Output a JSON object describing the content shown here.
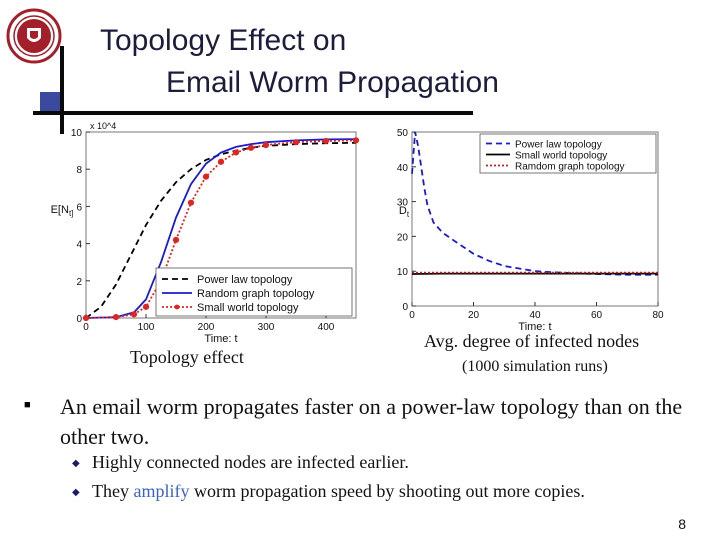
{
  "slide": {
    "title_line1": "Topology Effect on",
    "title_line2": "Email Worm Propagation",
    "caption_left": "Topology effect",
    "caption_right": "Avg. degree of infected nodes",
    "caption_right_sub": "(1000 simulation runs)",
    "bullet_main": "An email worm propagates faster on a power-law topology than on the other two.",
    "sub1": "Highly connected nodes are infected earlier.",
    "sub2_pre": "They ",
    "sub2_highlight": "amplify",
    "sub2_post": " worm propagation speed by shooting out more copies.",
    "page_number": "8",
    "colors": {
      "title": "#1c1c3c",
      "accent": "#3b62c6",
      "logo": "#a3202a"
    }
  },
  "chart_data": [
    {
      "type": "line",
      "xlabel": "Time: t",
      "ylabel": "E[N_t]",
      "y_multiplier": "x 10^4",
      "xlim": [
        0,
        450
      ],
      "ylim": [
        0,
        10
      ],
      "xticks": [
        0,
        100,
        200,
        300,
        400
      ],
      "yticks": [
        0,
        2,
        4,
        6,
        8,
        10
      ],
      "legend_position": "bottom-right",
      "series": [
        {
          "name": "Power law topology",
          "color": "#000000",
          "style": "dashed",
          "x": [
            0,
            25,
            50,
            75,
            100,
            125,
            150,
            175,
            200,
            225,
            250,
            275,
            300,
            350,
            400,
            450
          ],
          "y": [
            0,
            0.6,
            1.8,
            3.4,
            5.0,
            6.3,
            7.3,
            8.0,
            8.5,
            8.8,
            9.0,
            9.15,
            9.25,
            9.35,
            9.4,
            9.42
          ]
        },
        {
          "name": "Random graph topology",
          "color": "#1a1ad0",
          "style": "solid",
          "x": [
            0,
            50,
            80,
            100,
            125,
            150,
            175,
            200,
            225,
            250,
            275,
            300,
            350,
            400,
            450
          ],
          "y": [
            0,
            0.05,
            0.3,
            1.0,
            3.0,
            5.4,
            7.2,
            8.3,
            8.9,
            9.2,
            9.35,
            9.45,
            9.55,
            9.6,
            9.62
          ]
        },
        {
          "name": "Small world topology",
          "color": "#e0241e",
          "style": "dotted-marker",
          "x": [
            0,
            50,
            80,
            100,
            125,
            150,
            175,
            200,
            225,
            250,
            275,
            300,
            350,
            400,
            450
          ],
          "y": [
            0,
            0.05,
            0.2,
            0.6,
            2.0,
            4.2,
            6.2,
            7.6,
            8.4,
            8.9,
            9.15,
            9.3,
            9.45,
            9.52,
            9.55
          ]
        }
      ]
    },
    {
      "type": "line",
      "xlabel": "Time: t",
      "ylabel": "D_t",
      "xlim": [
        0,
        80
      ],
      "ylim": [
        0,
        50
      ],
      "xticks": [
        0,
        20,
        40,
        60,
        80
      ],
      "yticks": [
        0,
        10,
        20,
        30,
        40,
        50
      ],
      "legend_position": "top-right",
      "series": [
        {
          "name": "Power law topology",
          "color": "#1a1ad0",
          "style": "dashed",
          "x": [
            0,
            1,
            2,
            3,
            4,
            5,
            7,
            10,
            15,
            20,
            25,
            30,
            40,
            50,
            60,
            70,
            80
          ],
          "y": [
            38,
            50,
            46,
            40,
            34,
            29,
            24,
            21,
            18,
            15,
            13,
            11.5,
            10,
            9.5,
            9.2,
            9.0,
            9.0
          ]
        },
        {
          "name": "Small world topology",
          "color": "#000000",
          "style": "solid",
          "x": [
            0,
            10,
            20,
            40,
            60,
            80
          ],
          "y": [
            9.2,
            9.3,
            9.3,
            9.3,
            9.3,
            9.3
          ]
        },
        {
          "name": "Ramdom graph topology",
          "color": "#c81e1e",
          "style": "dotted",
          "x": [
            0,
            10,
            20,
            40,
            60,
            80
          ],
          "y": [
            9.6,
            9.6,
            9.6,
            9.6,
            9.6,
            9.6
          ]
        }
      ]
    }
  ]
}
